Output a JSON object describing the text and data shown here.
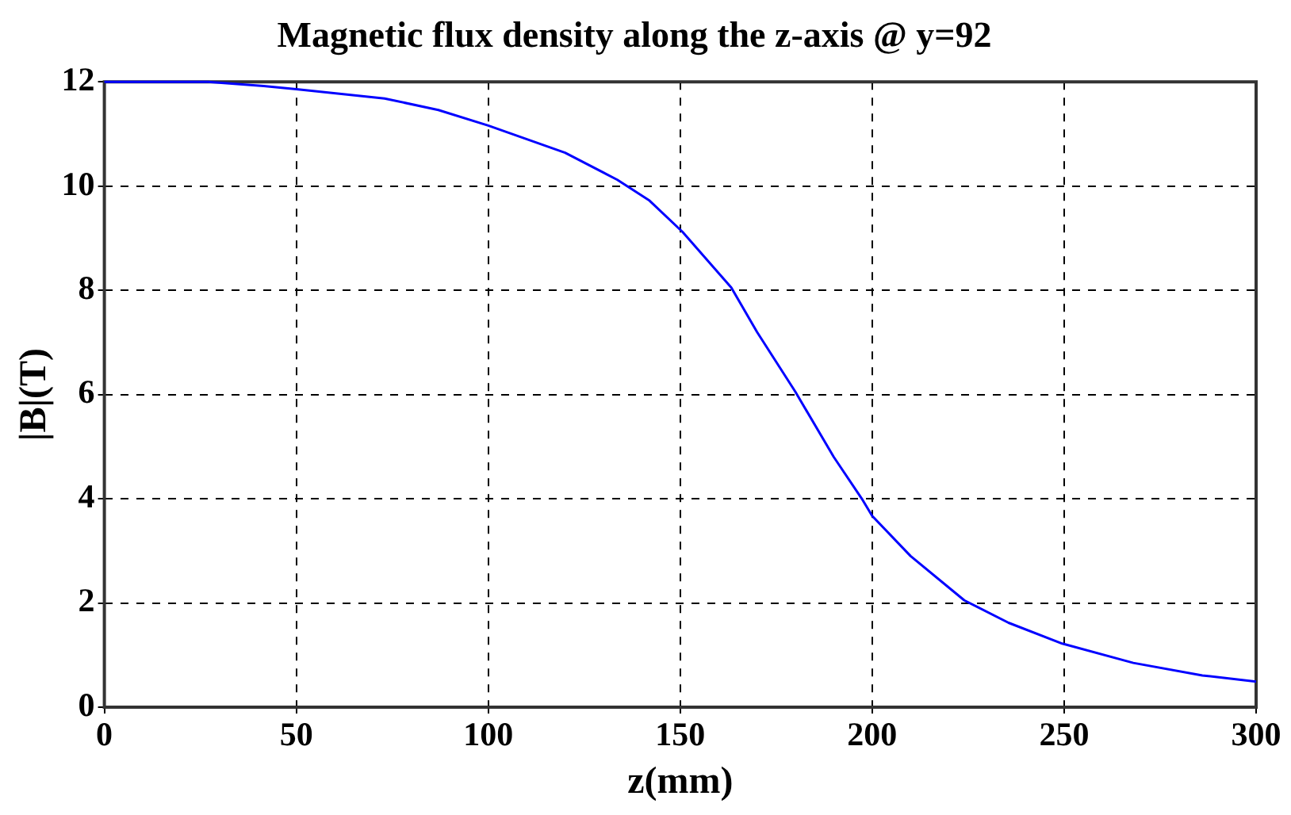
{
  "chart_data": {
    "type": "line",
    "title": "Magnetic flux density along the z-axis @ y=92",
    "xlabel": "z(mm)",
    "ylabel": "|B|(T)",
    "series": [
      {
        "color": "#0000ff",
        "x": [
          0,
          27,
          41.5,
          50,
          73,
          87,
          100,
          120,
          133.6,
          142,
          150.6,
          163.3,
          170,
          180,
          190,
          197.3,
          200,
          210,
          224,
          235.5,
          249.5,
          268,
          286,
          300
        ],
        "values": [
          12,
          12,
          11.92,
          11.86,
          11.68,
          11.46,
          11.16,
          10.64,
          10.12,
          9.72,
          9.12,
          8.05,
          7.2,
          6.05,
          4.8,
          4.0,
          3.67,
          2.9,
          2.05,
          1.62,
          1.22,
          0.85,
          0.61,
          0.49
        ]
      }
    ],
    "xlim": [
      0,
      300
    ],
    "xticks": [
      0,
      50,
      100,
      150,
      200,
      250,
      300
    ],
    "ylim": [
      0,
      12
    ],
    "yticks": [
      0,
      2,
      4,
      6,
      8,
      10,
      12
    ],
    "grid": true,
    "legend": false,
    "marker": "none",
    "line_style": "solid"
  }
}
